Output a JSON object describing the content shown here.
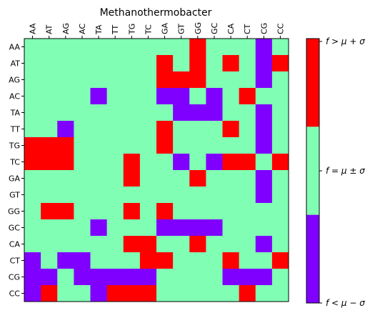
{
  "chart_data": {
    "type": "heatmap",
    "title": "Methanothermobacter",
    "xlabel": "",
    "ylabel": "",
    "x_tick_position": "top",
    "categories_x": [
      "AA",
      "AT",
      "AG",
      "AC",
      "TA",
      "TT",
      "TG",
      "TC",
      "GA",
      "GT",
      "GG",
      "GC",
      "CA",
      "CT",
      "CG",
      "CC"
    ],
    "categories_y": [
      "AA",
      "AT",
      "AG",
      "AC",
      "TA",
      "TT",
      "TG",
      "TC",
      "GA",
      "GT",
      "GG",
      "GC",
      "CA",
      "CT",
      "CG",
      "CC"
    ],
    "value_encoding": {
      "-1": "f < mu - sigma",
      "0": "f = mu ± sigma",
      "1": "f > mu + sigma"
    },
    "values": [
      [
        0,
        0,
        0,
        0,
        0,
        0,
        0,
        0,
        0,
        0,
        1,
        0,
        0,
        0,
        -1,
        0
      ],
      [
        0,
        0,
        0,
        0,
        0,
        0,
        0,
        0,
        1,
        0,
        1,
        0,
        1,
        0,
        -1,
        1
      ],
      [
        0,
        0,
        0,
        0,
        0,
        0,
        0,
        0,
        1,
        1,
        1,
        0,
        0,
        0,
        -1,
        0
      ],
      [
        0,
        0,
        0,
        0,
        -1,
        0,
        0,
        0,
        -1,
        -1,
        0,
        -1,
        0,
        1,
        0,
        0
      ],
      [
        0,
        0,
        0,
        0,
        0,
        0,
        0,
        0,
        0,
        -1,
        -1,
        -1,
        0,
        0,
        -1,
        0
      ],
      [
        0,
        0,
        -1,
        0,
        0,
        0,
        0,
        0,
        1,
        0,
        0,
        0,
        1,
        0,
        -1,
        0
      ],
      [
        1,
        1,
        1,
        0,
        0,
        0,
        0,
        0,
        1,
        0,
        0,
        0,
        0,
        0,
        -1,
        0
      ],
      [
        1,
        1,
        1,
        0,
        0,
        0,
        1,
        0,
        0,
        -1,
        0,
        -1,
        1,
        1,
        0,
        1
      ],
      [
        0,
        0,
        0,
        0,
        0,
        0,
        1,
        0,
        0,
        0,
        1,
        0,
        0,
        0,
        -1,
        0
      ],
      [
        0,
        0,
        0,
        0,
        0,
        0,
        0,
        0,
        0,
        0,
        0,
        0,
        0,
        0,
        -1,
        0
      ],
      [
        0,
        1,
        1,
        0,
        0,
        0,
        1,
        0,
        1,
        0,
        0,
        0,
        0,
        0,
        0,
        0
      ],
      [
        0,
        0,
        0,
        0,
        -1,
        0,
        0,
        0,
        -1,
        -1,
        -1,
        -1,
        0,
        0,
        0,
        0
      ],
      [
        0,
        0,
        0,
        0,
        0,
        0,
        1,
        1,
        0,
        0,
        1,
        0,
        0,
        0,
        -1,
        0
      ],
      [
        -1,
        0,
        -1,
        -1,
        0,
        0,
        0,
        1,
        1,
        0,
        0,
        0,
        1,
        0,
        0,
        1
      ],
      [
        -1,
        -1,
        0,
        -1,
        -1,
        -1,
        -1,
        -1,
        0,
        0,
        0,
        0,
        -1,
        -1,
        -1,
        0
      ],
      [
        -1,
        1,
        0,
        0,
        -1,
        1,
        1,
        1,
        0,
        0,
        0,
        0,
        0,
        1,
        0,
        0
      ]
    ],
    "colorbar": {
      "labels": [
        "f > μ + σ",
        "f = μ ± σ",
        "f < μ − σ"
      ],
      "colors": {
        "high": "#ff0000",
        "mid": "#80ffb4",
        "low": "#8000ff"
      }
    },
    "grid": false
  }
}
